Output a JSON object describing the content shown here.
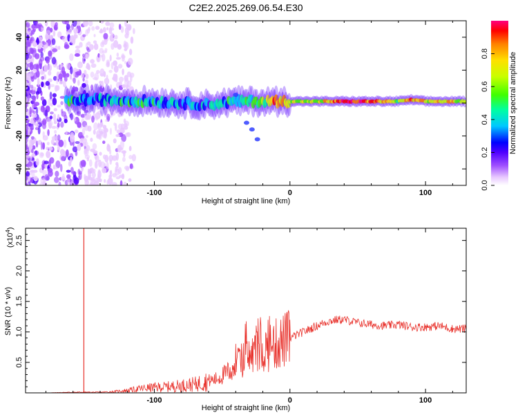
{
  "title": "C2E2.2025.269.06.54.E30",
  "chart_data": [
    {
      "type": "heatmap",
      "xlabel": "Height of straight line (km)",
      "ylabel": "Frequency (Hz)",
      "xlim": [
        -195,
        130
      ],
      "ylim": [
        -50,
        50
      ],
      "x_ticks": [
        -100,
        0,
        100
      ],
      "y_ticks": [
        -40,
        -20,
        0,
        20,
        40
      ],
      "colorbar": {
        "label": "Normalized spectral amplitude",
        "range": [
          0,
          1
        ],
        "ticks": [
          0.0,
          0.2,
          0.4,
          0.6,
          0.8
        ],
        "colors": [
          "#ffffff",
          "#e8c8ff",
          "#a050ff",
          "#5000ff",
          "#0000ff",
          "#00c8ff",
          "#00ffa0",
          "#40ff00",
          "#c8ff00",
          "#ffe000",
          "#ff8000",
          "#ff0000",
          "#ff0080"
        ]
      },
      "ridge": {
        "description_points_km_hz_amp": [
          [
            -160,
            2,
            0.35
          ],
          [
            -140,
            2,
            0.4
          ],
          [
            -120,
            1.5,
            0.45
          ],
          [
            -100,
            1,
            0.45
          ],
          [
            -80,
            0,
            0.4
          ],
          [
            -60,
            -1,
            0.4
          ],
          [
            -40,
            1,
            0.45
          ],
          [
            -20,
            1,
            0.55
          ],
          [
            -10,
            1,
            0.85
          ],
          [
            0,
            1,
            0.7
          ],
          [
            20,
            1,
            0.6
          ],
          [
            40,
            1,
            0.9
          ],
          [
            60,
            1,
            0.9
          ],
          [
            80,
            1,
            0.6
          ],
          [
            90,
            2,
            0.85
          ],
          [
            100,
            1,
            0.7
          ],
          [
            120,
            1,
            0.75
          ],
          [
            130,
            1,
            0.6
          ]
        ],
        "branch_points_km_hz": [
          [
            -40,
            5
          ],
          [
            -32,
            -12
          ],
          [
            -28,
            -16
          ],
          [
            -24,
            -22
          ]
        ]
      }
    },
    {
      "type": "line",
      "xlabel": "Height of straight line (km)",
      "ylabel": "SNR (10 * v/v)",
      "y_multiplier": "(x10",
      "y_multiplier_exp": "4",
      "y_multiplier_close": ")",
      "xlim": [
        -195,
        130
      ],
      "ylim": [
        0,
        2.7
      ],
      "x_ticks": [
        -100,
        0,
        100
      ],
      "y_ticks": [
        0.5,
        1.0,
        1.5,
        2.0,
        2.5
      ],
      "y_tick_labels": [
        "0.5",
        "1.0",
        "1.5",
        "2.0",
        "2.5"
      ],
      "vertical_marker_km": -152,
      "series_color": "#e8302a",
      "series": [
        {
          "name": "SNR",
          "x": [
            -195,
            -180,
            -160,
            -140,
            -130,
            -120,
            -110,
            -100,
            -90,
            -80,
            -70,
            -60,
            -55,
            -50,
            -45,
            -40,
            -35,
            -30,
            -25,
            -20,
            -15,
            -10,
            -5,
            0,
            5,
            10,
            15,
            20,
            25,
            30,
            35,
            40,
            50,
            60,
            70,
            80,
            90,
            100,
            110,
            120,
            130
          ],
          "values": [
            0.0,
            0.0,
            0.01,
            0.01,
            0.02,
            0.04,
            0.07,
            0.09,
            0.1,
            0.12,
            0.14,
            0.2,
            0.22,
            0.28,
            0.35,
            0.45,
            0.55,
            0.6,
            0.65,
            0.7,
            0.75,
            0.8,
            0.85,
            0.9,
            0.95,
            1.0,
            1.05,
            1.1,
            1.15,
            1.18,
            1.2,
            1.2,
            1.15,
            1.12,
            1.1,
            1.12,
            1.08,
            1.08,
            1.1,
            1.05,
            1.05
          ]
        }
      ]
    }
  ]
}
